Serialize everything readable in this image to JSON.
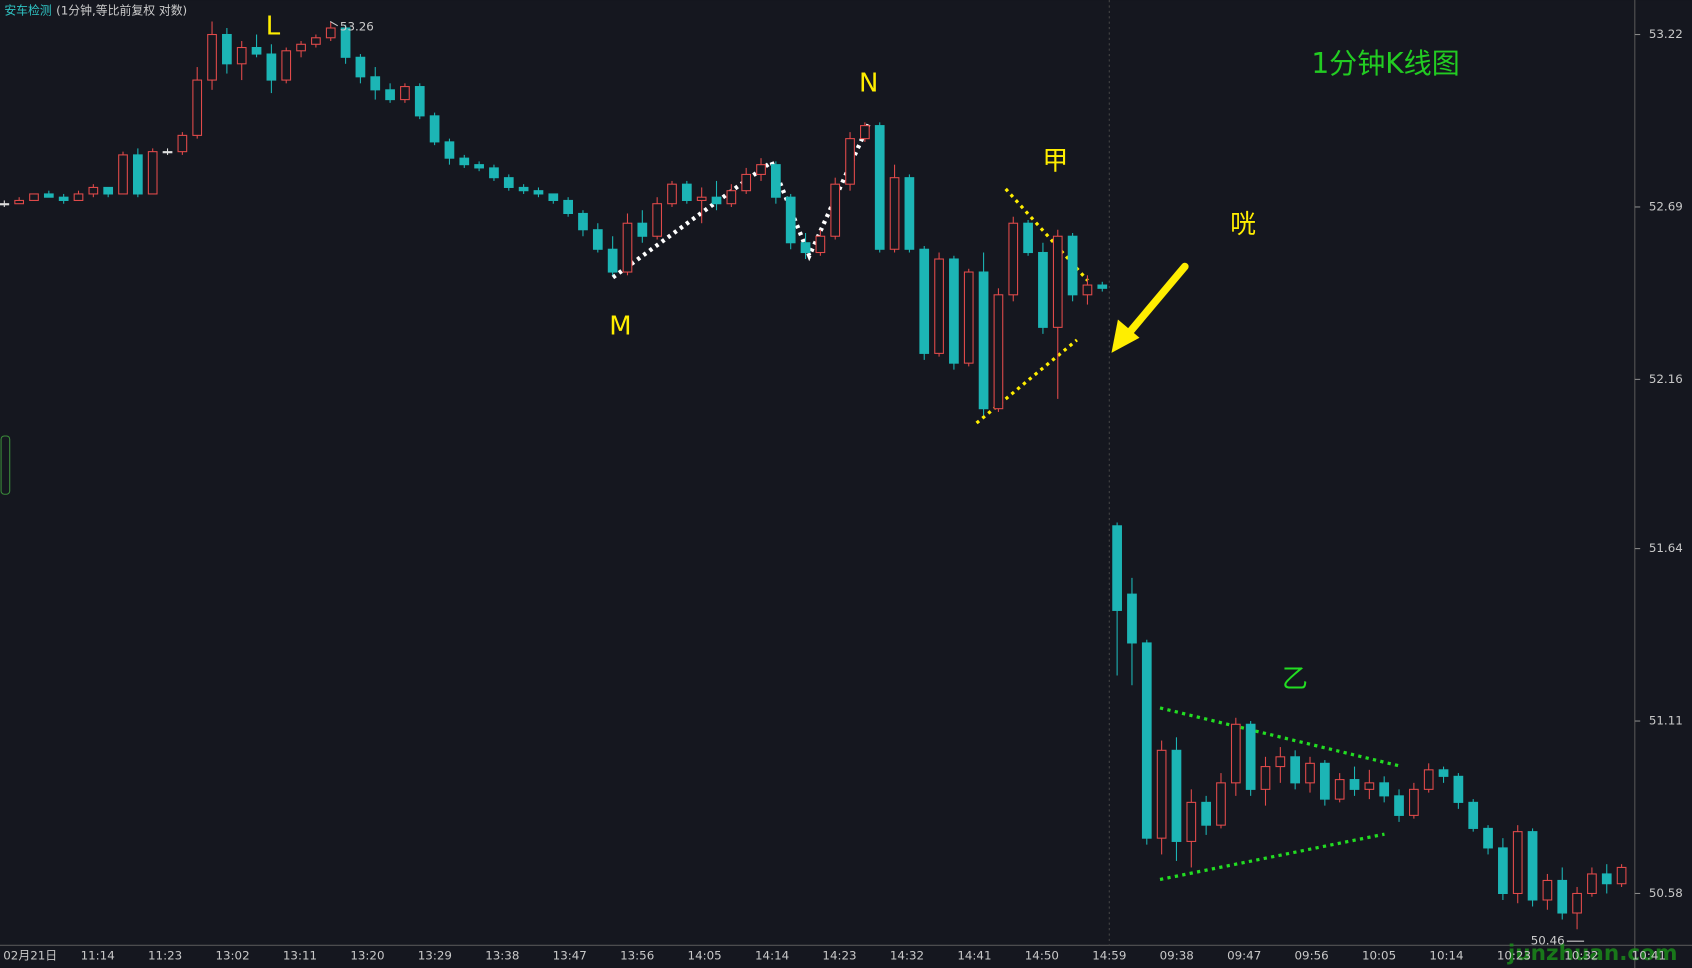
{
  "chart_data": {
    "type": "candlestick",
    "title": "1分钟K线图",
    "header_name": "安车检测",
    "header_mode": "(1分钟,等比前复权 对数)",
    "labels": [
      "L",
      "M",
      "N",
      "甲",
      "咣",
      "乙"
    ],
    "watermark": "junzhuan.com",
    "high_label": 53.26,
    "low_label": 50.46,
    "ylim": [
      50.424,
      53.326
    ],
    "yticks": [
      50.58,
      51.11,
      51.64,
      52.16,
      52.69,
      53.22
    ],
    "x_labels": [
      "02月21日",
      "11:14",
      "11:23",
      "13:02",
      "13:11",
      "13:20",
      "13:29",
      "13:38",
      "13:47",
      "13:56",
      "14:05",
      "14:14",
      "14:23",
      "14:32",
      "14:41",
      "14:50",
      "14:59",
      "09:38",
      "09:47",
      "09:56",
      "10:05",
      "10:14",
      "10:23",
      "10:32",
      "10:41"
    ],
    "up_color": "#e04a4a",
    "down_color": "#1cb5b5",
    "ohlc": [
      [
        52.7,
        52.71,
        52.69,
        52.7
      ],
      [
        52.7,
        52.72,
        52.7,
        52.71
      ],
      [
        52.71,
        52.73,
        52.71,
        52.73
      ],
      [
        52.73,
        52.74,
        52.72,
        52.72
      ],
      [
        52.72,
        52.73,
        52.7,
        52.71
      ],
      [
        52.71,
        52.74,
        52.71,
        52.73
      ],
      [
        52.73,
        52.76,
        52.72,
        52.75
      ],
      [
        52.75,
        52.75,
        52.72,
        52.73
      ],
      [
        52.73,
        52.86,
        52.73,
        52.85
      ],
      [
        52.85,
        52.87,
        52.72,
        52.73
      ],
      [
        52.73,
        52.87,
        52.73,
        52.86
      ],
      [
        52.86,
        52.87,
        52.85,
        52.86
      ],
      [
        52.86,
        52.92,
        52.85,
        52.91
      ],
      [
        52.91,
        53.12,
        52.9,
        53.08
      ],
      [
        53.08,
        53.26,
        53.05,
        53.22
      ],
      [
        53.22,
        53.24,
        53.1,
        53.13
      ],
      [
        53.13,
        53.2,
        53.08,
        53.18
      ],
      [
        53.18,
        53.22,
        53.15,
        53.16
      ],
      [
        53.16,
        53.19,
        53.04,
        53.08
      ],
      [
        53.08,
        53.18,
        53.07,
        53.17
      ],
      [
        53.17,
        53.2,
        53.15,
        53.19
      ],
      [
        53.19,
        53.22,
        53.18,
        53.21
      ],
      [
        53.21,
        53.26,
        53.2,
        53.24
      ],
      [
        53.24,
        53.25,
        53.13,
        53.15
      ],
      [
        53.15,
        53.16,
        53.07,
        53.09
      ],
      [
        53.09,
        53.12,
        53.02,
        53.05
      ],
      [
        53.05,
        53.07,
        53.01,
        53.02
      ],
      [
        53.02,
        53.07,
        53.01,
        53.06
      ],
      [
        53.06,
        53.07,
        52.96,
        52.97
      ],
      [
        52.97,
        52.98,
        52.88,
        52.89
      ],
      [
        52.89,
        52.9,
        52.82,
        52.84
      ],
      [
        52.84,
        52.85,
        52.81,
        52.82
      ],
      [
        52.82,
        52.83,
        52.8,
        52.81
      ],
      [
        52.81,
        52.82,
        52.77,
        52.78
      ],
      [
        52.78,
        52.79,
        52.74,
        52.75
      ],
      [
        52.75,
        52.76,
        52.73,
        52.74
      ],
      [
        52.74,
        52.75,
        52.72,
        52.73
      ],
      [
        52.73,
        52.73,
        52.7,
        52.71
      ],
      [
        52.71,
        52.72,
        52.66,
        52.67
      ],
      [
        52.67,
        52.68,
        52.6,
        52.62
      ],
      [
        52.62,
        52.64,
        52.55,
        52.56
      ],
      [
        52.56,
        52.6,
        52.48,
        52.49
      ],
      [
        52.49,
        52.67,
        52.48,
        52.64
      ],
      [
        52.64,
        52.68,
        52.58,
        52.6
      ],
      [
        52.6,
        52.72,
        52.59,
        52.7
      ],
      [
        52.7,
        52.77,
        52.69,
        52.76
      ],
      [
        52.76,
        52.77,
        52.7,
        52.71
      ],
      [
        52.71,
        52.75,
        52.64,
        52.72
      ],
      [
        52.72,
        52.77,
        52.68,
        52.7
      ],
      [
        52.7,
        52.76,
        52.69,
        52.74
      ],
      [
        52.74,
        52.81,
        52.73,
        52.79
      ],
      [
        52.79,
        52.84,
        52.77,
        52.82
      ],
      [
        52.82,
        52.83,
        52.7,
        52.72
      ],
      [
        52.72,
        52.73,
        52.56,
        52.58
      ],
      [
        52.58,
        52.61,
        52.53,
        52.55
      ],
      [
        52.55,
        52.62,
        52.54,
        52.6
      ],
      [
        52.6,
        52.78,
        52.59,
        52.76
      ],
      [
        52.76,
        52.92,
        52.74,
        52.9
      ],
      [
        52.9,
        52.95,
        52.89,
        52.94
      ],
      [
        52.94,
        52.95,
        52.55,
        52.56
      ],
      [
        52.56,
        52.82,
        52.55,
        52.78
      ],
      [
        52.78,
        52.79,
        52.55,
        52.56
      ],
      [
        52.56,
        52.57,
        52.22,
        52.24
      ],
      [
        52.24,
        52.55,
        52.23,
        52.53
      ],
      [
        52.53,
        52.54,
        52.19,
        52.21
      ],
      [
        52.21,
        52.5,
        52.2,
        52.49
      ],
      [
        52.49,
        52.55,
        52.05,
        52.07
      ],
      [
        52.07,
        52.44,
        52.06,
        52.42
      ],
      [
        52.42,
        52.66,
        52.4,
        52.64
      ],
      [
        52.64,
        52.65,
        52.54,
        52.55
      ],
      [
        52.55,
        52.58,
        52.3,
        52.32
      ],
      [
        52.32,
        52.62,
        52.1,
        52.6
      ],
      [
        52.6,
        52.61,
        52.4,
        52.42
      ],
      [
        52.42,
        52.48,
        52.39,
        52.45
      ],
      [
        52.45,
        52.46,
        52.43,
        52.44
      ],
      [
        51.71,
        51.72,
        51.25,
        51.45
      ],
      [
        51.5,
        51.55,
        51.22,
        51.35
      ],
      [
        51.35,
        51.36,
        50.73,
        50.75
      ],
      [
        50.75,
        51.05,
        50.7,
        51.02
      ],
      [
        51.02,
        51.06,
        50.68,
        50.74
      ],
      [
        50.74,
        50.9,
        50.66,
        50.86
      ],
      [
        50.86,
        50.88,
        50.76,
        50.79
      ],
      [
        50.79,
        50.95,
        50.78,
        50.92
      ],
      [
        50.92,
        51.12,
        50.88,
        51.1
      ],
      [
        51.1,
        51.11,
        50.88,
        50.9
      ],
      [
        50.9,
        51.0,
        50.85,
        50.97
      ],
      [
        50.97,
        51.03,
        50.92,
        51.0
      ],
      [
        51.0,
        51.02,
        50.9,
        50.92
      ],
      [
        50.92,
        51.0,
        50.89,
        50.98
      ],
      [
        50.98,
        50.99,
        50.85,
        50.87
      ],
      [
        50.87,
        50.95,
        50.86,
        50.93
      ],
      [
        50.93,
        50.97,
        50.88,
        50.9
      ],
      [
        50.9,
        50.96,
        50.87,
        50.92
      ],
      [
        50.92,
        50.94,
        50.86,
        50.88
      ],
      [
        50.88,
        50.9,
        50.8,
        50.82
      ],
      [
        50.82,
        50.92,
        50.81,
        50.9
      ],
      [
        50.9,
        50.98,
        50.89,
        50.96
      ],
      [
        50.96,
        50.97,
        50.92,
        50.94
      ],
      [
        50.94,
        50.95,
        50.84,
        50.86
      ],
      [
        50.86,
        50.87,
        50.77,
        50.78
      ],
      [
        50.78,
        50.79,
        50.7,
        50.72
      ],
      [
        50.72,
        50.75,
        50.56,
        50.58
      ],
      [
        50.58,
        50.79,
        50.55,
        50.77
      ],
      [
        50.77,
        50.78,
        50.54,
        50.56
      ],
      [
        50.56,
        50.64,
        50.53,
        50.62
      ],
      [
        50.62,
        50.66,
        50.5,
        50.52
      ],
      [
        50.52,
        50.6,
        50.47,
        50.58
      ],
      [
        50.58,
        50.66,
        50.57,
        50.64
      ],
      [
        50.64,
        50.67,
        50.58,
        50.61
      ],
      [
        50.61,
        50.67,
        50.6,
        50.66
      ]
    ]
  }
}
